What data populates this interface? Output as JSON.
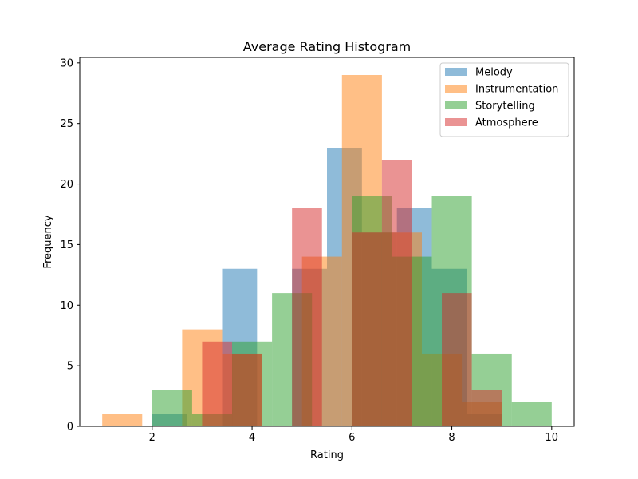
{
  "chart_data": {
    "type": "bar",
    "title": "Average Rating Histogram",
    "xlabel": "Rating",
    "ylabel": "Frequency",
    "xlim": [
      0.55,
      10.45
    ],
    "ylim": [
      0,
      30.45
    ],
    "xticks": [
      2,
      4,
      6,
      8,
      10
    ],
    "yticks": [
      0,
      5,
      10,
      15,
      20,
      25,
      30
    ],
    "grid": false,
    "legend_position": "top-right",
    "bar_opacity": 0.5,
    "series": [
      {
        "name": "Melody",
        "color": "#1f77b4",
        "bins": [
          {
            "x0": 2.0,
            "x1": 2.7,
            "count": 1
          },
          {
            "x0": 2.7,
            "x1": 3.4,
            "count": 0
          },
          {
            "x0": 3.4,
            "x1": 4.1,
            "count": 13
          },
          {
            "x0": 4.1,
            "x1": 4.8,
            "count": 0
          },
          {
            "x0": 4.8,
            "x1": 5.5,
            "count": 13
          },
          {
            "x0": 5.5,
            "x1": 6.2,
            "count": 23
          },
          {
            "x0": 6.2,
            "x1": 6.9,
            "count": 16
          },
          {
            "x0": 6.9,
            "x1": 7.6,
            "count": 18
          },
          {
            "x0": 7.6,
            "x1": 8.3,
            "count": 13
          },
          {
            "x0": 8.3,
            "x1": 9.0,
            "count": 1
          }
        ]
      },
      {
        "name": "Instrumentation",
        "color": "#ff7f0e",
        "bins": [
          {
            "x0": 1.0,
            "x1": 1.8,
            "count": 1
          },
          {
            "x0": 1.8,
            "x1": 2.6,
            "count": 0
          },
          {
            "x0": 2.6,
            "x1": 3.4,
            "count": 8
          },
          {
            "x0": 3.4,
            "x1": 4.2,
            "count": 6
          },
          {
            "x0": 4.2,
            "x1": 5.0,
            "count": 0
          },
          {
            "x0": 5.0,
            "x1": 5.8,
            "count": 14
          },
          {
            "x0": 5.8,
            "x1": 6.6,
            "count": 29
          },
          {
            "x0": 6.6,
            "x1": 7.4,
            "count": 16
          },
          {
            "x0": 7.4,
            "x1": 8.2,
            "count": 6
          },
          {
            "x0": 8.2,
            "x1": 9.0,
            "count": 2
          }
        ]
      },
      {
        "name": "Storytelling",
        "color": "#2ca02c",
        "bins": [
          {
            "x0": 2.0,
            "x1": 2.8,
            "count": 3
          },
          {
            "x0": 2.8,
            "x1": 3.6,
            "count": 1
          },
          {
            "x0": 3.6,
            "x1": 4.4,
            "count": 7
          },
          {
            "x0": 4.4,
            "x1": 5.2,
            "count": 11
          },
          {
            "x0": 5.2,
            "x1": 6.0,
            "count": 0
          },
          {
            "x0": 6.0,
            "x1": 6.8,
            "count": 19
          },
          {
            "x0": 6.8,
            "x1": 7.6,
            "count": 14
          },
          {
            "x0": 7.6,
            "x1": 8.4,
            "count": 19
          },
          {
            "x0": 8.4,
            "x1": 9.2,
            "count": 6
          },
          {
            "x0": 9.2,
            "x1": 10.0,
            "count": 2
          }
        ]
      },
      {
        "name": "Atmosphere",
        "color": "#d62728",
        "bins": [
          {
            "x0": 3.0,
            "x1": 3.6,
            "count": 7
          },
          {
            "x0": 3.6,
            "x1": 4.2,
            "count": 6
          },
          {
            "x0": 4.2,
            "x1": 4.8,
            "count": 0
          },
          {
            "x0": 4.8,
            "x1": 5.4,
            "count": 18
          },
          {
            "x0": 5.4,
            "x1": 6.0,
            "count": 0
          },
          {
            "x0": 6.0,
            "x1": 6.6,
            "count": 16
          },
          {
            "x0": 6.6,
            "x1": 7.2,
            "count": 22
          },
          {
            "x0": 7.2,
            "x1": 7.8,
            "count": 0
          },
          {
            "x0": 7.8,
            "x1": 8.4,
            "count": 11
          },
          {
            "x0": 8.4,
            "x1": 9.0,
            "count": 3
          }
        ]
      }
    ]
  }
}
